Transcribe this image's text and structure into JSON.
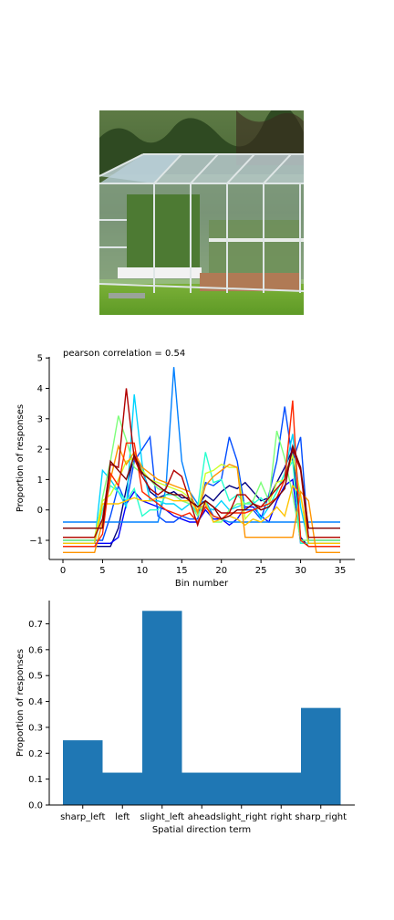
{
  "photo": {
    "subject": "greenhouse-photo"
  },
  "chart_data": [
    {
      "type": "line",
      "title": "pearson correlation = 0.54",
      "xlabel": "Bin number",
      "ylabel": "Proportion of responses",
      "xlim": [
        0,
        36
      ],
      "ylim": [
        -1.7,
        5
      ],
      "xticks": [
        "0",
        "5",
        "10",
        "15",
        "20",
        "25",
        "30",
        "35"
      ],
      "yticks": [
        "−1",
        "0",
        "1",
        "2",
        "3",
        "4",
        "5"
      ],
      "grid": false,
      "x": [
        0,
        1,
        2,
        3,
        4,
        5,
        6,
        7,
        8,
        9,
        10,
        11,
        12,
        13,
        14,
        15,
        16,
        17,
        18,
        19,
        20,
        21,
        22,
        23,
        24,
        25,
        26,
        27,
        28,
        29,
        30,
        31,
        32,
        33,
        34,
        35
      ],
      "series": [
        {
          "color": "#00007f",
          "values": [
            -1.2,
            -1.2,
            -1.2,
            -1.2,
            -1.2,
            -1.2,
            -1.2,
            -0.6,
            0.7,
            1.8,
            1.3,
            0.6,
            0.4,
            0.5,
            0.6,
            0.4,
            0.4,
            0.1,
            0.5,
            0.3,
            0.6,
            0.8,
            0.7,
            0.9,
            0.6,
            0.3,
            0.4,
            0.9,
            1.4,
            2.0,
            -0.9,
            -1.2,
            -1.2,
            -1.2,
            -1.2,
            -1.2
          ]
        },
        {
          "color": "#0000ff",
          "values": [
            -1.1,
            -1.1,
            -1.1,
            -1.1,
            -1.1,
            -1.1,
            -1.1,
            -0.9,
            0.2,
            0.6,
            0.3,
            0.2,
            0.1,
            0.0,
            -0.2,
            -0.3,
            -0.4,
            -0.4,
            0.0,
            -0.3,
            -0.3,
            -0.5,
            -0.3,
            0.1,
            0.1,
            -0.2,
            -0.4,
            0.3,
            0.8,
            1.0,
            -1.1,
            -1.1,
            -1.1,
            -1.1,
            -1.1,
            -1.1
          ]
        },
        {
          "color": "#004cff",
          "values": [
            -1.0,
            -1.0,
            -1.0,
            -1.0,
            -1.0,
            -1.0,
            -0.2,
            0.8,
            0.2,
            1.6,
            2.0,
            2.4,
            -0.2,
            -0.4,
            -0.4,
            -0.2,
            -0.3,
            -0.3,
            0.9,
            0.8,
            1.0,
            2.4,
            1.6,
            0.0,
            0.0,
            -0.3,
            0.5,
            1.6,
            3.4,
            1.6,
            2.4,
            -1.0,
            -1.0,
            -1.0,
            -1.0,
            -1.0
          ]
        },
        {
          "color": "#0080ff",
          "values": [
            -0.4,
            -0.4,
            -0.4,
            -0.4,
            -0.4,
            -0.4,
            -0.4,
            -0.4,
            -0.4,
            -0.4,
            -0.4,
            -0.4,
            -0.4,
            0.7,
            4.7,
            1.6,
            0.6,
            0.2,
            0.3,
            -0.2,
            -0.3,
            -0.4,
            -0.4,
            -0.4,
            -0.4,
            -0.4,
            -0.4,
            -0.4,
            -0.4,
            -0.4,
            -0.4,
            -0.4,
            -0.4,
            -0.4,
            -0.4,
            -0.4
          ]
        },
        {
          "color": "#00d4ff",
          "values": [
            -1.1,
            -1.1,
            -1.1,
            -1.1,
            -1.1,
            1.3,
            1.0,
            0.6,
            0.1,
            3.8,
            1.5,
            0.3,
            0.3,
            0.2,
            0.2,
            0.0,
            0.2,
            -0.1,
            0.1,
            0.0,
            0.3,
            0.0,
            0.1,
            0.2,
            0.3,
            -0.3,
            0.1,
            0.6,
            1.2,
            2.5,
            0.1,
            -1.1,
            -1.1,
            -1.1,
            -1.1,
            -1.1
          ]
        },
        {
          "color": "#29ffce",
          "values": [
            -1.1,
            -1.1,
            -1.1,
            -1.1,
            -1.1,
            0.0,
            0.8,
            0.6,
            0.3,
            0.7,
            -0.2,
            0.0,
            0.0,
            0.5,
            0.5,
            0.3,
            0.3,
            0.1,
            1.9,
            0.9,
            1.0,
            0.3,
            0.5,
            0.2,
            0.2,
            0.4,
            0.1,
            0.6,
            1.2,
            1.6,
            -1.1,
            -1.1,
            -1.1,
            -1.1,
            -1.1,
            -1.1
          ]
        },
        {
          "color": "#7dff7a",
          "values": [
            -1.0,
            -1.0,
            -1.0,
            -1.0,
            -1.0,
            0.4,
            1.6,
            3.1,
            2.3,
            1.4,
            1.2,
            1.0,
            0.7,
            0.6,
            0.5,
            0.3,
            0.2,
            -0.2,
            0.3,
            -0.4,
            -0.4,
            0.0,
            0.2,
            0.2,
            0.3,
            0.9,
            0.3,
            2.6,
            1.7,
            0.5,
            -1.0,
            -1.0,
            -1.0,
            -1.0,
            -1.0,
            -1.0
          ]
        },
        {
          "color": "#ceff29",
          "values": [
            -0.9,
            -0.9,
            -0.9,
            -0.9,
            -0.9,
            0.3,
            0.5,
            1.0,
            1.6,
            1.7,
            1.3,
            1.0,
            0.9,
            0.8,
            0.7,
            0.6,
            0.4,
            -0.1,
            1.2,
            1.3,
            1.5,
            1.4,
            1.4,
            -0.3,
            0.0,
            0.1,
            0.2,
            0.9,
            1.0,
            1.8,
            0.5,
            -0.9,
            -0.9,
            -0.9,
            -0.9,
            -0.9
          ]
        },
        {
          "color": "#ffc400",
          "values": [
            -1.1,
            -1.1,
            -1.1,
            -1.1,
            -1.1,
            0.2,
            0.2,
            0.2,
            0.3,
            0.4,
            0.3,
            0.3,
            0.4,
            0.4,
            0.3,
            0.3,
            0.3,
            0.0,
            0.2,
            -0.4,
            -0.3,
            -0.2,
            -0.3,
            -0.5,
            -0.3,
            -0.4,
            -0.2,
            0.1,
            -0.2,
            0.8,
            0.5,
            -1.1,
            -1.1,
            -1.1,
            -1.1,
            -1.1
          ]
        },
        {
          "color": "#ff9400",
          "values": [
            -1.4,
            -1.4,
            -1.4,
            -1.4,
            -1.4,
            -0.4,
            1.0,
            2.1,
            1.5,
            1.9,
            1.4,
            1.2,
            1.0,
            0.9,
            0.8,
            0.7,
            0.6,
            -0.1,
            0.8,
            1.1,
            1.3,
            1.5,
            1.4,
            -0.9,
            -0.9,
            -0.9,
            -0.9,
            -0.9,
            -0.9,
            -0.9,
            0.6,
            0.3,
            -1.4,
            -1.4,
            -1.4,
            -1.4
          ]
        },
        {
          "color": "#ff2900",
          "values": [
            -1.2,
            -1.2,
            -1.2,
            -1.2,
            -1.2,
            -0.8,
            1.2,
            0.8,
            2.2,
            2.2,
            0.6,
            0.4,
            0.2,
            0.0,
            -0.1,
            -0.2,
            -0.1,
            -0.4,
            0.1,
            -0.2,
            -0.3,
            -0.1,
            -0.1,
            -0.1,
            0.0,
            0.1,
            0.2,
            0.4,
            1.0,
            3.6,
            -1.0,
            -1.2,
            -1.2,
            -1.2,
            -1.2,
            -1.2
          ]
        },
        {
          "color": "#b20000",
          "values": [
            -0.9,
            -0.9,
            -0.9,
            -0.9,
            -0.9,
            -0.3,
            1.5,
            1.4,
            4.0,
            1.7,
            1.1,
            0.7,
            0.5,
            0.7,
            1.3,
            1.1,
            0.3,
            -0.5,
            0.3,
            0.1,
            -0.1,
            -0.1,
            0.5,
            0.5,
            0.2,
            0.1,
            0.4,
            0.7,
            1.0,
            2.0,
            1.3,
            -0.9,
            -0.9,
            -0.9,
            -0.9,
            -0.9
          ]
        },
        {
          "color": "#7f0000",
          "values": [
            -0.6,
            -0.6,
            -0.6,
            -0.6,
            -0.6,
            -0.6,
            1.6,
            1.3,
            1.0,
            1.8,
            1.2,
            1.0,
            0.8,
            0.6,
            0.5,
            0.5,
            0.3,
            0.1,
            0.3,
            0.1,
            -0.3,
            -0.2,
            0.0,
            0.0,
            0.2,
            0.0,
            0.1,
            0.4,
            0.7,
            2.1,
            1.4,
            -0.6,
            -0.6,
            -0.6,
            -0.6,
            -0.6
          ]
        }
      ]
    },
    {
      "type": "bar",
      "xlabel": "Spatial direction term",
      "ylabel": "Proportion of responses",
      "categories": [
        "sharp_left",
        "left",
        "slight_left",
        "ahead",
        "slight_right",
        "right",
        "sharp_right"
      ],
      "values": [
        0.25,
        0.125,
        0.75,
        0.125,
        0.125,
        0.125,
        0.375
      ],
      "ylim": [
        0,
        0.79
      ],
      "yticks": [
        "0.0",
        "0.1",
        "0.2",
        "0.3",
        "0.4",
        "0.5",
        "0.6",
        "0.7"
      ],
      "color": "#1f77b4",
      "grid": false
    }
  ]
}
